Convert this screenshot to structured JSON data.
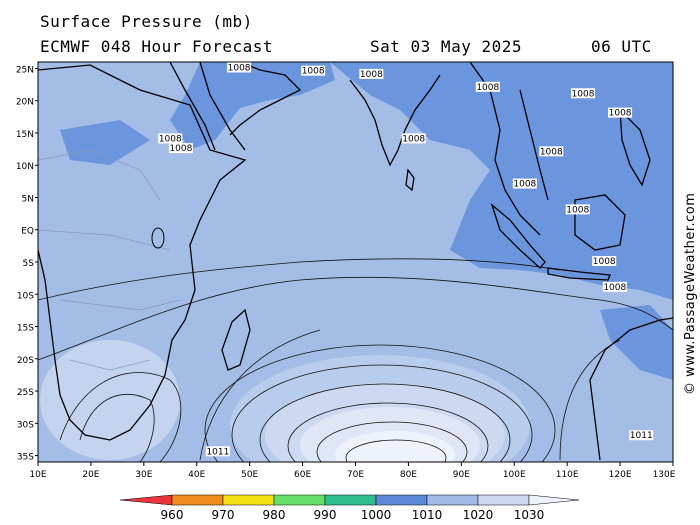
{
  "header": {
    "title": "Surface Pressure (mb)",
    "model": "ECMWF 048 Hour Forecast",
    "date": "Sat 03 May 2025",
    "time": "06 UTC"
  },
  "axes": {
    "lat_labels": [
      "25N",
      "20N",
      "15N",
      "10N",
      "5N",
      "EQ",
      "5S",
      "10S",
      "15S",
      "20S",
      "25S",
      "30S",
      "35S"
    ],
    "lon_labels": [
      "10E",
      "20E",
      "30E",
      "40E",
      "50E",
      "60E",
      "70E",
      "80E",
      "90E",
      "100E",
      "110E",
      "120E",
      "130E"
    ]
  },
  "legend": {
    "values": [
      "960",
      "970",
      "980",
      "990",
      "1000",
      "1010",
      "1020",
      "1030"
    ],
    "colors": [
      "#e8343a",
      "#f08c1e",
      "#f5e013",
      "#66e067",
      "#2fbf8f",
      "#5a87d6",
      "#9fbbe6",
      "#cdd9f0"
    ]
  },
  "isobar_labels": [
    {
      "text": "1008",
      "lon": 48,
      "lat": 25
    },
    {
      "text": "1008",
      "lon": 62,
      "lat": 24.5
    },
    {
      "text": "1008",
      "lon": 73,
      "lat": 24
    },
    {
      "text": "1008",
      "lon": 95,
      "lat": 22
    },
    {
      "text": "1008",
      "lon": 113,
      "lat": 21
    },
    {
      "text": "1008",
      "lon": 120,
      "lat": 18
    },
    {
      "text": "1008",
      "lon": 35,
      "lat": 14
    },
    {
      "text": "1008",
      "lon": 37,
      "lat": 12.5
    },
    {
      "text": "1008",
      "lon": 81,
      "lat": 14
    },
    {
      "text": "1008",
      "lon": 107,
      "lat": 12
    },
    {
      "text": "1008",
      "lon": 102,
      "lat": 7
    },
    {
      "text": "1008",
      "lon": 112,
      "lat": 3
    },
    {
      "text": "1008",
      "lon": 117,
      "lat": -5
    },
    {
      "text": "1008",
      "lon": 119,
      "lat": -9
    },
    {
      "text": "1011",
      "lon": 44,
      "lat": -34.5
    },
    {
      "text": "1011",
      "lon": 124,
      "lat": -32
    }
  ],
  "watermark": "© www.PassageWeather.com"
}
